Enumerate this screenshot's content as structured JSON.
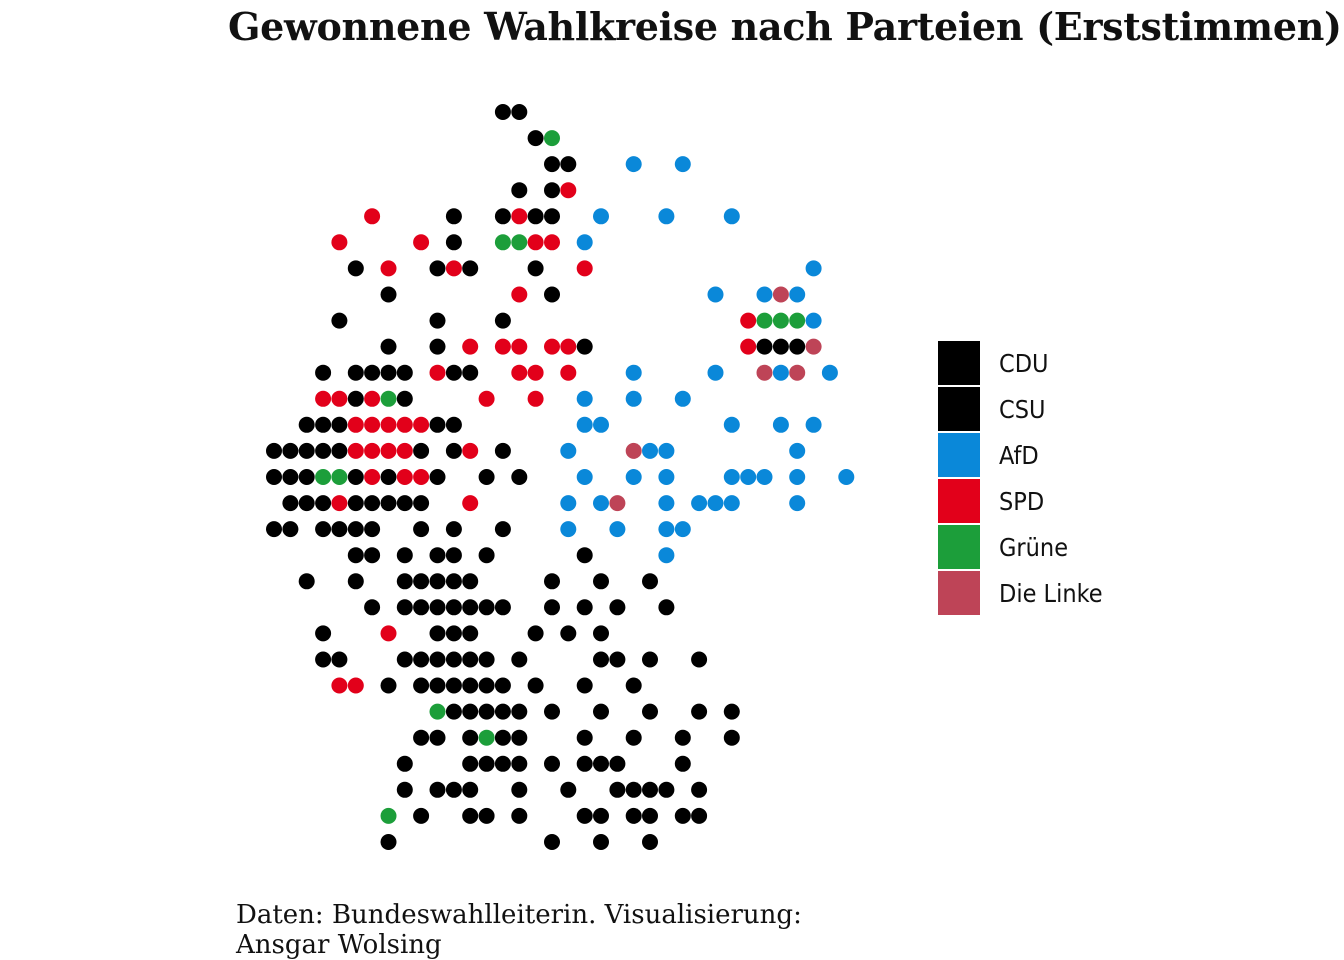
{
  "chart_data": {
    "type": "scatter",
    "title": "Gewonnene Wahlkreise nach Parteien (Erststimmen)",
    "caption": "Daten: Bundeswahlleiterin. Visualisierung: Ansgar Wolsing",
    "legend_position": "right",
    "grid": false,
    "parties": [
      {
        "code": "K",
        "name": "CDU",
        "color": "#000000"
      },
      {
        "code": "S",
        "name": "CSU",
        "color": "#000000"
      },
      {
        "code": "A",
        "name": "AfD",
        "color": "#0a88d9"
      },
      {
        "code": "R",
        "name": "SPD",
        "color": "#e2001a"
      },
      {
        "code": "G",
        "name": "Grüne",
        "color": "#1c9e3a"
      },
      {
        "code": "L",
        "name": "Die Linke",
        "color": "#be4457"
      }
    ],
    "grid_columns": 36,
    "grid_rows": 29,
    "rows": [
      "..............KK....................",
      "................KG..................",
      ".................KK...A..A..........",
      "...............K.KR.................",
      "......R....K..KRKK..A...A...A.......",
      "....R....R.K..GGRR.A................",
      ".....K.R..KRK...K..R.............A..",
      ".......K.......R.K.........A..ALA...",
      "....K.....K...K..............RGGGA..",
      ".......K..K.R.RR.RRK.........RKKKL..",
      "...K.KKKK.RKK..RR.R...A....A..LAL.A.",
      "...RRKRGK....R..R..A..A..A..........",
      "..KKKRRRRRKK.......AA.......A..A.A..",
      "KKKKKRRRRK.KR.K...A...LAA.......A...",
      "KKKGGKRKRRK..K.K...A..A.A...AAA.A..A",
      ".KKKRKKKKK..R.....A.AL..A.AAA...A...",
      "KK.KKKK..K.K..K...A..A..AA..........",
      ".....KK.K.KK.K.....K....A...........",
      "..K..K..KKKKK....K..K..K............",
      "......K.KKKKKKK..K.K.K..K...........",
      "...K...R..KKK...K.K.K...............",
      "...KK...KKKKKK.K....KK.K..K.........",
      "....RR.K.KKKKKK.K..K..K.............",
      "..........GKKKKK.K..K..K..K.K.......",
      ".........KK.KGKK...K..K..K..K.......",
      "........K...KKKK.K.KKK...K..........",
      "........K.KKK..K..K..KKKK.K.........",
      ".......G.K..KK.K...KK.KK.KK.........",
      ".......K.........K..K..K............"
    ]
  }
}
